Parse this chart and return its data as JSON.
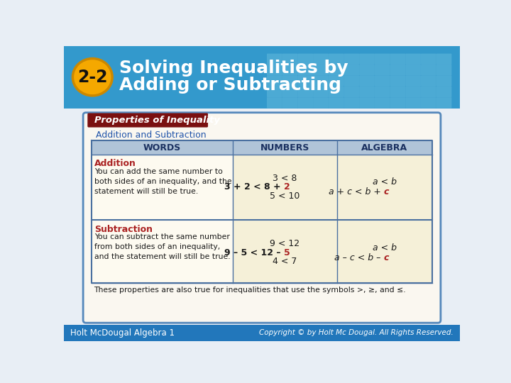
{
  "title_line1": "Solving Inequalities by",
  "title_line2": "Adding or Subtracting",
  "badge_text": "2-2",
  "header_bg_color": "#3399cc",
  "header_tile_color": "#66bbdd",
  "badge_color": "#f5a800",
  "badge_outline": "#cc8800",
  "title_color": "#ffffff",
  "box_title": "Properties of Inequality",
  "box_title_bg": "#7a1010",
  "box_title_color": "#ffffff",
  "subtitle": "Addition and Subtraction",
  "subtitle_color": "#2255aa",
  "col_header_bg": "#b0c4d8",
  "col_headers": [
    "WORDS",
    "NUMBERS",
    "ALGEBRA"
  ],
  "col_header_color": "#1a3060",
  "row_bg1": "#fdfaf0",
  "row_bg2": "#f8f4e4",
  "section_title_color": "#aa2222",
  "body_text_color": "#1a1a1a",
  "highlight_color": "#aa2222",
  "addition_title": "Addition",
  "addition_words": "You can add the same number to\nboth sides of an inequality, and the\nstatement will still be true.",
  "addition_numbers_line1": "3 < 8",
  "addition_numbers_line2a": "3 + 2 < 8 + ",
  "addition_numbers_line2b": "2",
  "addition_numbers_line3": "5 < 10",
  "addition_algebra_line1": "a < b",
  "addition_algebra_line2a": "a + c < b + ",
  "addition_algebra_line2b": "c",
  "subtraction_title": "Subtraction",
  "subtraction_words": "You can subtract the same number\nfrom both sides of an inequality,\nand the statement will still be true.",
  "subtraction_numbers_line1": "9 < 12",
  "subtraction_numbers_line2a": "9 – 5 < 12 – ",
  "subtraction_numbers_line2b": "5",
  "subtraction_numbers_line3": "4 < 7",
  "subtraction_algebra_line1": "a < b",
  "subtraction_algebra_line2a": "a – c < b – ",
  "subtraction_algebra_line2b": "c",
  "footer_note": "These properties are also true for inequalities that use the symbols >, ≥, and ≤.",
  "bottom_left": "Holt McDougal Algebra 1",
  "bottom_right": "Copyright © by Holt Mc Dougal. All Rights Reserved.",
  "bottom_bg": "#2277bb",
  "bottom_text_color": "#ffffff",
  "box_bg": "#f5f0e0",
  "box_border_color": "#5588bb",
  "table_border_color": "#4a70a0",
  "page_bg": "#e8eef5"
}
